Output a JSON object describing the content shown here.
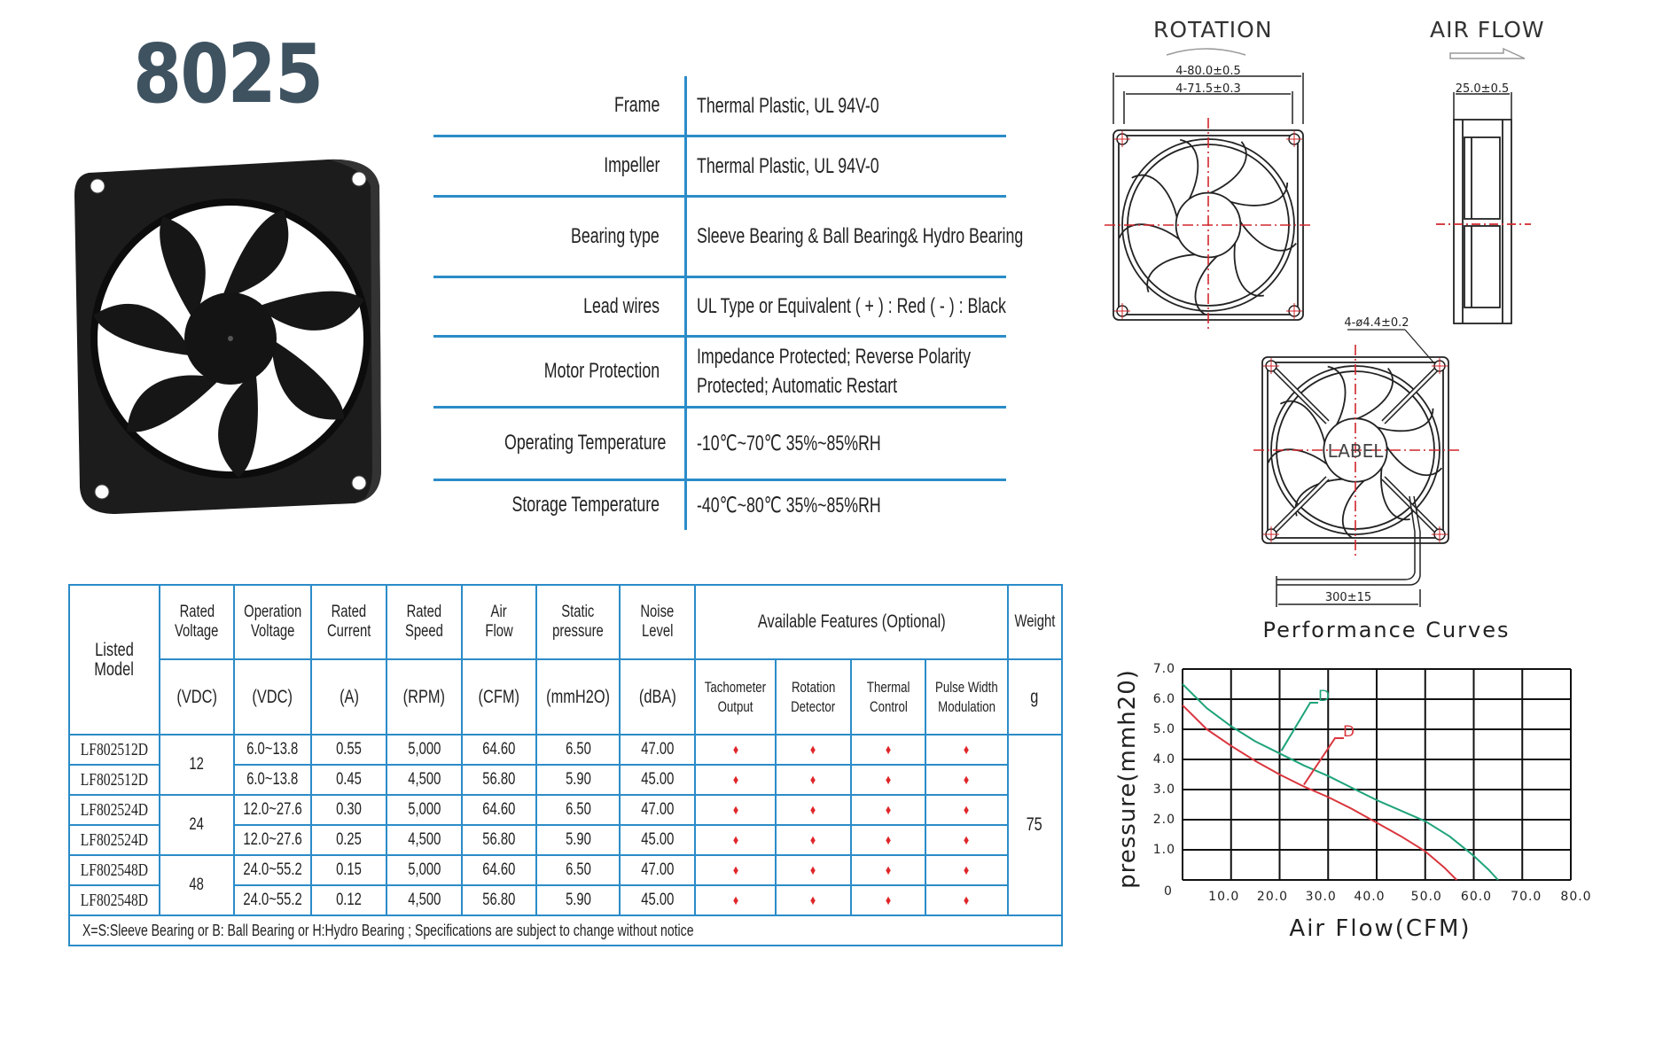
{
  "header": {
    "model_number": "8025"
  },
  "specifications": [
    {
      "label": "Frame",
      "value": [
        "Thermal Plastic, UL 94V-0"
      ]
    },
    {
      "label": "Impeller",
      "value": [
        "Thermal Plastic, UL 94V-0"
      ]
    },
    {
      "label": "Bearing type",
      "value": [
        "Sleeve Bearing &  Ball Bearing& Hydro Bearing"
      ]
    },
    {
      "label": "Lead wires",
      "value": [
        "UL Type or Equivalent ( + ) : Red ( - ) : Black"
      ]
    },
    {
      "label": "Motor Protection",
      "value": [
        "Impedance Protected; Reverse Polarity",
        "Protected; Automatic Restart"
      ]
    },
    {
      "label": "Operating Temperature",
      "value": [
        "-10℃~70℃   35%~85%RH"
      ]
    },
    {
      "label": "Storage Temperature",
      "value": [
        "-40℃~80℃   35%~85%RH"
      ]
    }
  ],
  "model_table": {
    "header": {
      "listed_model": [
        "Listed",
        "Model"
      ],
      "columns": [
        {
          "name": [
            "Rated",
            "Voltage"
          ],
          "unit": "(VDC)"
        },
        {
          "name": [
            "Operation",
            "Voltage"
          ],
          "unit": "(VDC)"
        },
        {
          "name": [
            "Rated",
            "Current"
          ],
          "unit": "(A)"
        },
        {
          "name": [
            "Rated",
            "Speed"
          ],
          "unit": "(RPM)"
        },
        {
          "name": [
            "Air",
            "Flow"
          ],
          "unit": "(CFM)"
        },
        {
          "name": [
            "Static",
            "pressure"
          ],
          "unit": "(mmH2O)"
        },
        {
          "name": [
            "Noise",
            "Level"
          ],
          "unit": "(dBA)"
        }
      ],
      "features_title": "Available Features (Optional)",
      "features": [
        [
          "Tachometer",
          "Output"
        ],
        [
          "Rotation",
          "Detector"
        ],
        [
          "Thermal",
          "Control"
        ],
        [
          "Pulse Width",
          "Modulation"
        ]
      ],
      "weight": "Weight",
      "weight_unit": "g"
    },
    "voltage_groups": [
      "12",
      "24",
      "48"
    ],
    "rows": [
      {
        "model": "LF802512D",
        "op_voltage": "6.0~13.8",
        "current": "0.55",
        "speed": "5,000",
        "airflow": "64.60",
        "pressure": "6.50",
        "noise": "47.00"
      },
      {
        "model": "LF802512D",
        "op_voltage": "6.0~13.8",
        "current": "0.45",
        "speed": "4,500",
        "airflow": "56.80",
        "pressure": "5.90",
        "noise": "45.00"
      },
      {
        "model": "LF802524D",
        "op_voltage": "12.0~27.6",
        "current": "0.30",
        "speed": "5,000",
        "airflow": "64.60",
        "pressure": "6.50",
        "noise": "47.00"
      },
      {
        "model": "LF802524D",
        "op_voltage": "12.0~27.6",
        "current": "0.25",
        "speed": "4,500",
        "airflow": "56.80",
        "pressure": "5.90",
        "noise": "45.00"
      },
      {
        "model": "LF802548D",
        "op_voltage": "24.0~55.2",
        "current": "0.15",
        "speed": "5,000",
        "airflow": "64.60",
        "pressure": "6.50",
        "noise": "47.00"
      },
      {
        "model": "LF802548D",
        "op_voltage": "24.0~55.2",
        "current": "0.12",
        "speed": "4,500",
        "airflow": "56.80",
        "pressure": "5.90",
        "noise": "45.00"
      }
    ],
    "feature_mark": "♦",
    "weight_value": "75",
    "footnote": "X=S:Sleeve Bearing or B: Ball Bearing or H:Hydro Bearing ; Specifications are subject to change without notice"
  },
  "drawings": {
    "rotation_label": "ROTATION",
    "airflow_label": "AIR FLOW",
    "dim_outer": "4-80.0±0.5",
    "dim_holes": "4-71.5±0.3",
    "dim_depth": "25.0±0.5",
    "dim_hole_dia": "4-ø4.4±0.2",
    "label_text": "LABEL",
    "dim_wire": "300±15"
  },
  "colors": {
    "accent_blue": "#2b8cc8",
    "title_slate": "#3e5260",
    "feature_red": "#e0262a",
    "curve_green": "#1fa37a",
    "curve_red": "#d9363e",
    "centerline_red": "#d0262c"
  },
  "chart_data": {
    "type": "line",
    "title": "Performance Curves",
    "xlabel": "Air Flow(CFM)",
    "ylabel": "pressure(mmh20)",
    "xlim": [
      0,
      80
    ],
    "ylim": [
      0,
      7
    ],
    "grid": true,
    "x_tick_labels": [
      "0",
      "10.0",
      "20.0",
      "30.0",
      "40.0",
      "50.0",
      "60.0",
      "70.0",
      "80.0"
    ],
    "y_tick_labels": [
      "1.0",
      "2.0",
      "3.0",
      "4.0",
      "5.0",
      "6.0",
      "7.0"
    ],
    "series": [
      {
        "label": "D",
        "color": "#1fa37a",
        "x": [
          0,
          5,
          10,
          15,
          20,
          25,
          30,
          35,
          40,
          45,
          50,
          55,
          60,
          63,
          65
        ],
        "y": [
          6.5,
          5.7,
          5.1,
          4.6,
          4.2,
          3.8,
          3.45,
          3.05,
          2.65,
          2.3,
          1.95,
          1.45,
          0.8,
          0.35,
          0
        ]
      },
      {
        "label": "D",
        "color": "#d9363e",
        "x": [
          0,
          5,
          10,
          15,
          20,
          25,
          30,
          35,
          40,
          45,
          50,
          54,
          56.5
        ],
        "y": [
          5.8,
          5.0,
          4.45,
          3.95,
          3.5,
          3.1,
          2.75,
          2.35,
          1.9,
          1.45,
          0.95,
          0.4,
          0
        ]
      }
    ]
  }
}
